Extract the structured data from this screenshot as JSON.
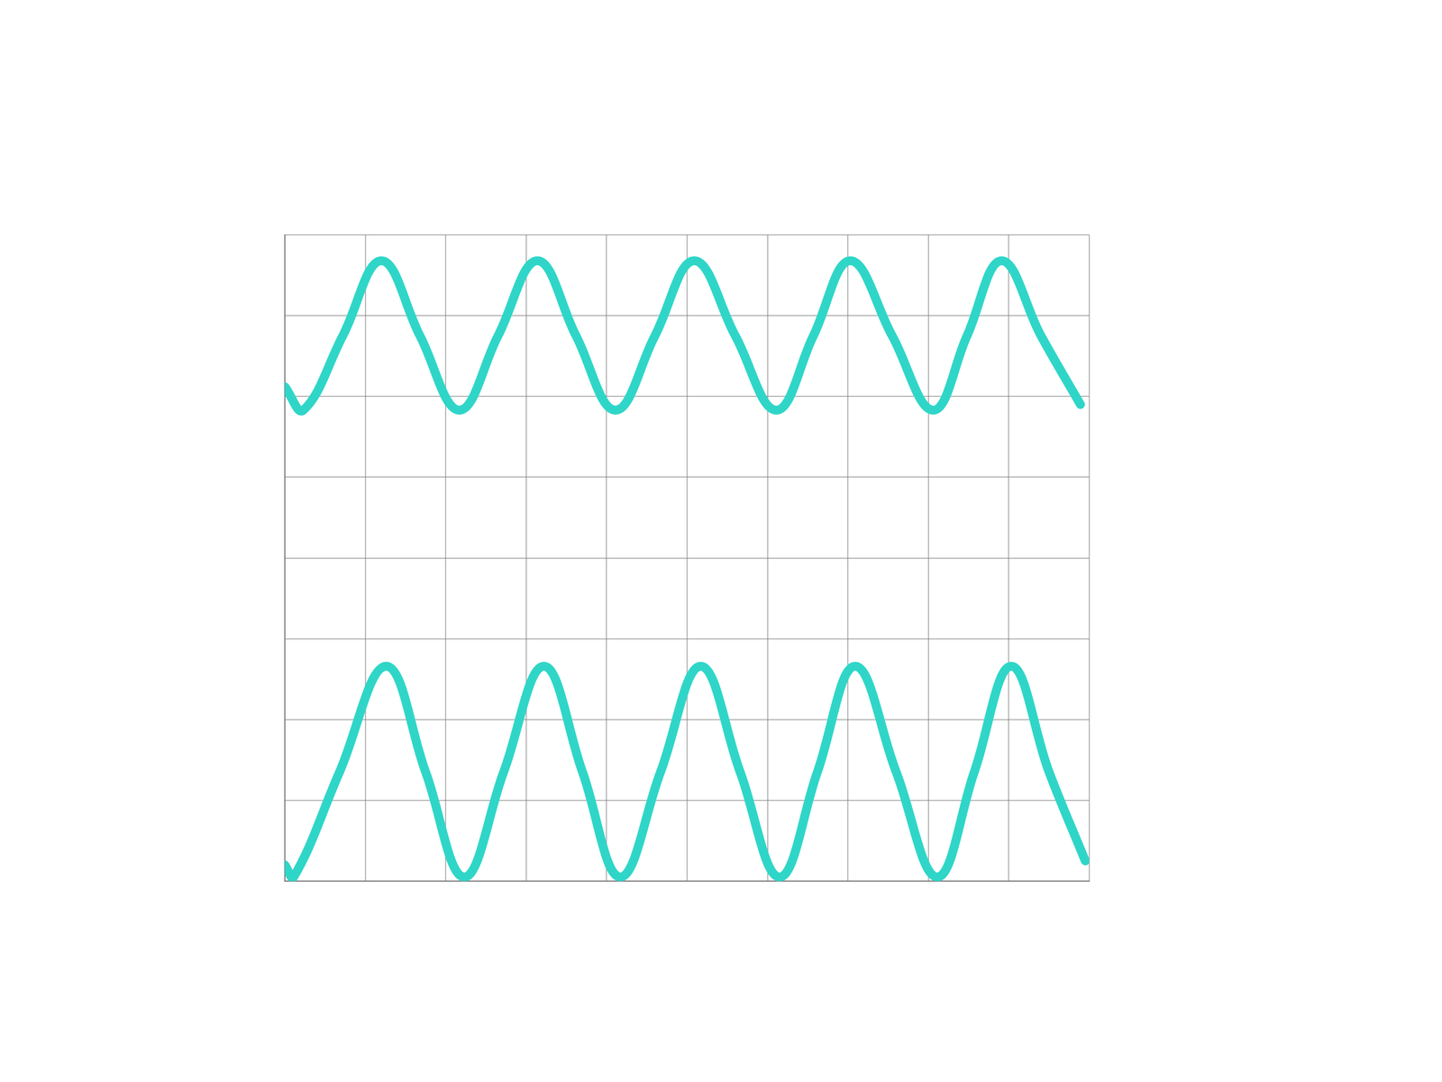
{
  "chart_data": {
    "type": "line",
    "xlim": [
      0,
      10
    ],
    "xticks": [
      0,
      1,
      2,
      3,
      4,
      5,
      6,
      7,
      8,
      9,
      10
    ],
    "ylim": [
      -4,
      4
    ],
    "yticks": [
      -4,
      -3,
      -2,
      -1,
      0,
      1,
      2,
      3,
      4
    ],
    "grid": true,
    "tick_labels": false,
    "series": [
      {
        "color": "#2fd6c8",
        "x": [
          0,
          0.23,
          0.72,
          1.2,
          1.68,
          2.17,
          2.65,
          3.14,
          3.62,
          4.11,
          4.6,
          5.09,
          5.6,
          6.11,
          6.57,
          7.03,
          7.55,
          8.06,
          8.48,
          8.91,
          9.4,
          9.89
        ],
        "values": [
          2.12,
          1.83,
          2.75,
          3.68,
          2.75,
          1.83,
          2.75,
          3.68,
          2.75,
          1.83,
          2.75,
          3.68,
          2.75,
          1.83,
          2.75,
          3.68,
          2.75,
          1.83,
          2.75,
          3.68,
          2.75,
          1.9
        ]
      },
      {
        "color": "#2fd6c8",
        "x": [
          0,
          0.11,
          0.68,
          1.26,
          1.75,
          2.23,
          2.72,
          3.22,
          3.7,
          4.17,
          4.67,
          5.17,
          5.66,
          6.15,
          6.62,
          7.09,
          7.6,
          8.11,
          8.57,
          9.03,
          9.5,
          9.95
        ],
        "values": [
          -3.8,
          -3.95,
          -2.65,
          -1.34,
          -2.65,
          -3.95,
          -2.65,
          -1.34,
          -2.65,
          -3.95,
          -2.65,
          -1.34,
          -2.65,
          -3.95,
          -2.65,
          -1.34,
          -2.65,
          -3.95,
          -2.65,
          -1.34,
          -2.65,
          -3.75
        ]
      }
    ]
  }
}
